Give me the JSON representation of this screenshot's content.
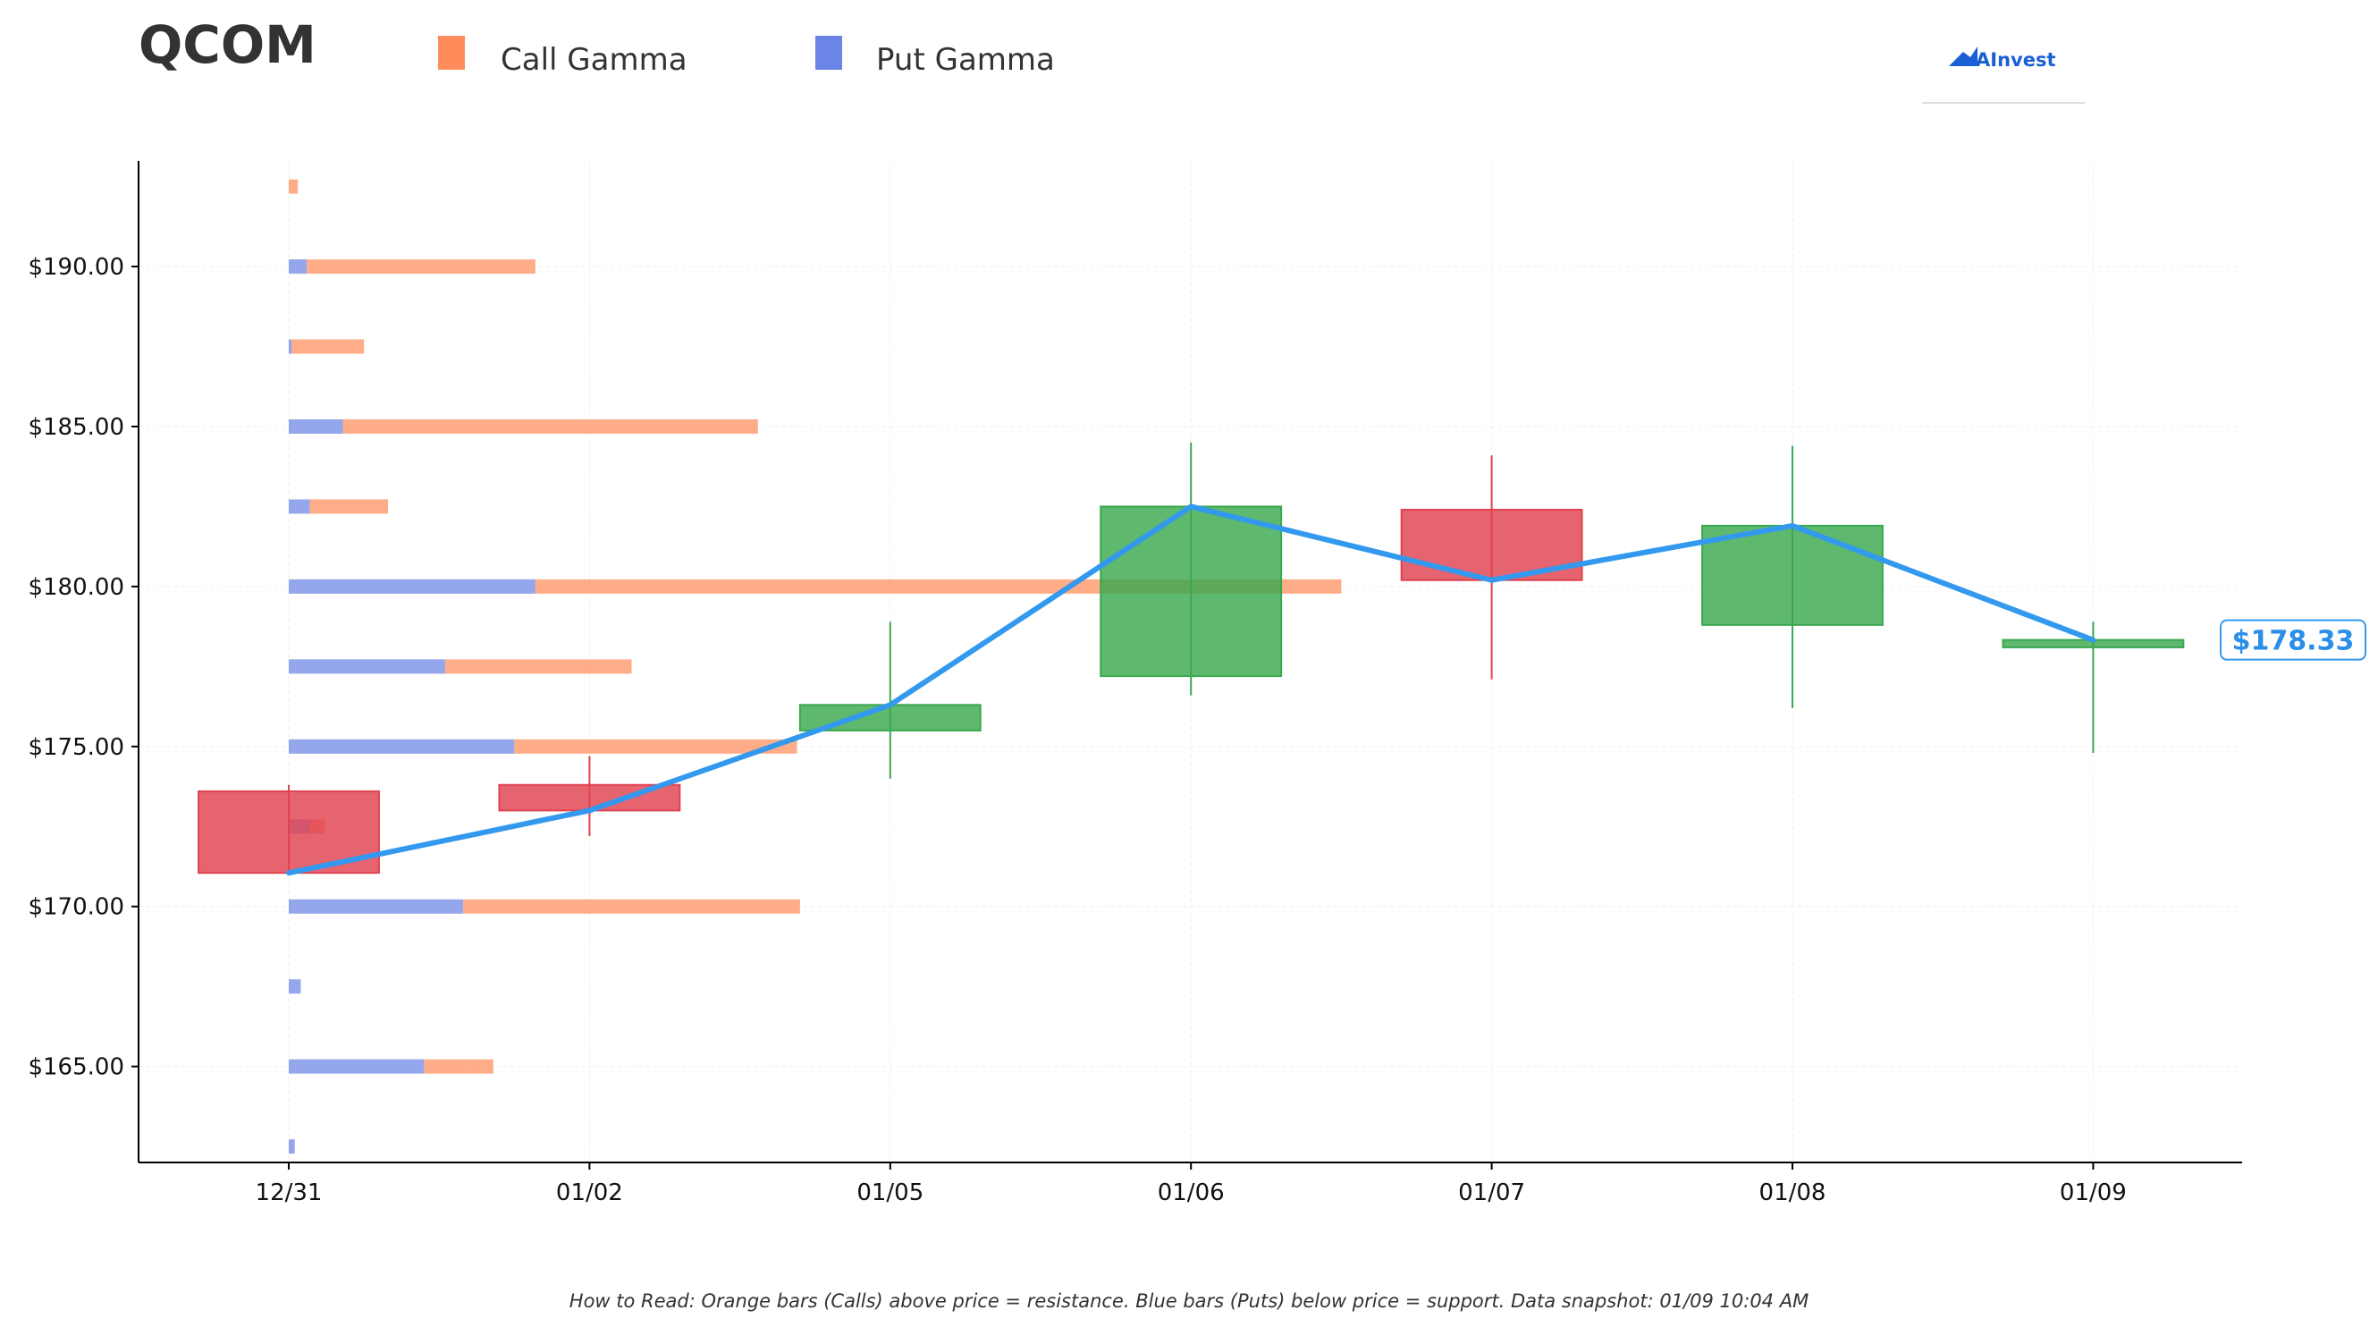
{
  "chart_data": {
    "type": "candlestick",
    "title": "QCOM",
    "legend": [
      {
        "name": "Call Gamma",
        "color": "#ff8c5a"
      },
      {
        "name": "Put Gamma",
        "color": "#6b85e6"
      }
    ],
    "logo_text": "AInvest",
    "footer_note": "How to Read: Orange bars (Calls) above price = resistance. Blue bars (Puts) below price = support. Data snapshot: 01/09 10:04 AM",
    "current_price_label": "$178.33",
    "current_price": 178.33,
    "ylim": [
      162.0,
      193.3
    ],
    "yticks": [
      165,
      170,
      175,
      180,
      185,
      190
    ],
    "ytick_labels": [
      "$165.00",
      "$170.00",
      "$175.00",
      "$180.00",
      "$185.00",
      "$190.00"
    ],
    "categories": [
      "12/31",
      "01/02",
      "01/05",
      "01/06",
      "01/07",
      "01/08",
      "01/09"
    ],
    "colors": {
      "up": "#3aa84e",
      "down": "#e0424f",
      "line": "#3399ee",
      "call": "#ff8c5a",
      "put": "#6b85e6"
    },
    "candles": [
      {
        "date": "12/31",
        "open": 173.6,
        "high": 173.8,
        "low": 171.0,
        "close": 171.05
      },
      {
        "date": "01/02",
        "open": 173.8,
        "high": 174.7,
        "low": 172.2,
        "close": 173.0
      },
      {
        "date": "01/05",
        "open": 175.5,
        "high": 178.9,
        "low": 174.0,
        "close": 176.3
      },
      {
        "date": "01/06",
        "open": 177.2,
        "high": 184.5,
        "low": 176.6,
        "close": 182.5
      },
      {
        "date": "01/07",
        "open": 182.4,
        "high": 184.1,
        "low": 177.1,
        "close": 180.2
      },
      {
        "date": "01/08",
        "open": 178.8,
        "high": 184.4,
        "low": 176.2,
        "close": 181.9
      },
      {
        "date": "01/09",
        "open": 178.1,
        "high": 178.9,
        "low": 174.8,
        "close": 178.33
      }
    ],
    "line_series": {
      "values": [
        171.05,
        173.0,
        176.3,
        182.5,
        180.2,
        181.9,
        178.33
      ]
    },
    "gamma_profile": {
      "scale_note": "gamma magnitudes in category-axis units",
      "strikes": [
        162.5,
        165,
        167.5,
        170,
        172.5,
        175,
        177.5,
        180,
        182.5,
        185,
        187.5,
        190,
        192.5
      ],
      "put": [
        0.02,
        0.45,
        0.04,
        0.58,
        0.07,
        0.75,
        0.52,
        0.82,
        0.07,
        0.18,
        0.01,
        0.06,
        0.0
      ],
      "call": [
        0.0,
        0.23,
        0.0,
        1.12,
        0.05,
        0.94,
        0.62,
        2.68,
        0.26,
        1.38,
        0.24,
        0.76,
        0.03
      ]
    }
  }
}
